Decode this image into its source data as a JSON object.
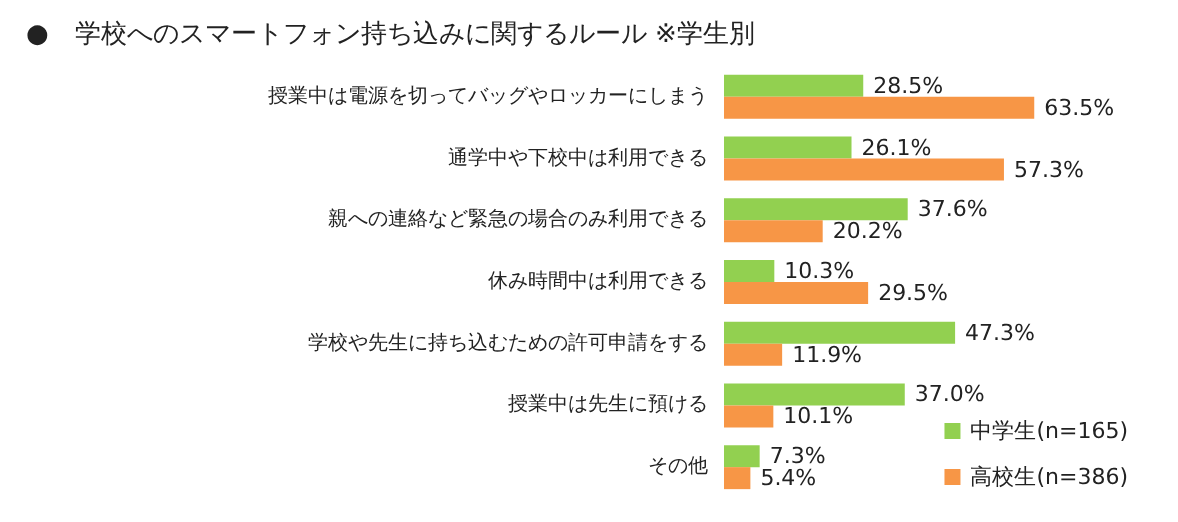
{
  "chart_data": {
    "type": "bar",
    "orientation": "horizontal",
    "title": "●　学校へのスマートフォン持ち込みに関するルール ※学生別",
    "categories": [
      "授業中は電源を切ってバッグやロッカーにしまう",
      "通学中や下校中は利用できる",
      "親への連絡など緊急の場合のみ利用できる",
      "休み時間中は利用できる",
      "学校や先生に持ち込むための許可申請をする",
      "授業中は先生に預ける",
      "その他"
    ],
    "series": [
      {
        "name": "中学生(n=165)",
        "color": "#92d050",
        "values": [
          28.5,
          26.1,
          37.6,
          10.3,
          47.3,
          37.0,
          7.3
        ],
        "value_labels": [
          "28.5%",
          "26.1%",
          "37.6%",
          "10.3%",
          "47.3%",
          "37.0%",
          "7.3%"
        ]
      },
      {
        "name": "高校生(n=386)",
        "color": "#f79646",
        "values": [
          63.5,
          57.3,
          20.2,
          29.5,
          11.9,
          10.1,
          5.4
        ],
        "value_labels": [
          "63.5%",
          "57.3%",
          "20.2%",
          "29.5%",
          "11.9%",
          "10.1%",
          "5.4%"
        ]
      }
    ],
    "legend": "bottom right"
  }
}
